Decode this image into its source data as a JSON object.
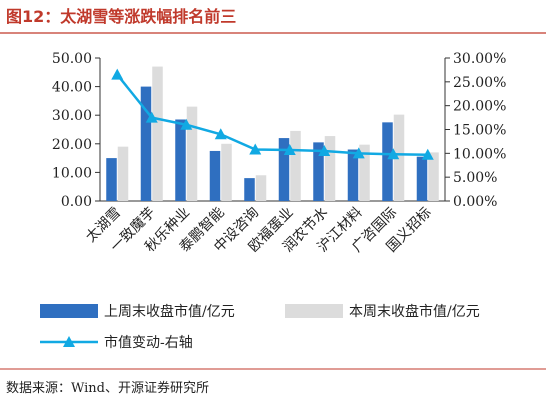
{
  "header": {
    "title": "图12：太湖雪等涨跌幅排名前三"
  },
  "footer": {
    "source": "数据来源：Wind、开源证券研究所"
  },
  "colors": {
    "title": "#c0392b",
    "current_bar": "#2f6fc0",
    "last_bar": "#dcdcdc",
    "line": "#11a9e3",
    "rule": "#c0392b"
  },
  "chart_data": {
    "type": "bar",
    "categories": [
      "太湖雪",
      "一致魔芋",
      "秋乐种业",
      "泰鹏智能",
      "中设咨询",
      "欧福蛋业",
      "润农节水",
      "沪江材料",
      "广咨国际",
      "国义招标"
    ],
    "series": [
      {
        "name": "上周末收盘市值/亿元",
        "axis": "left",
        "values": [
          15.0,
          40.0,
          28.5,
          17.5,
          8.0,
          22.0,
          20.5,
          18.0,
          27.5,
          15.5
        ]
      },
      {
        "name": "本周末收盘市值/亿元",
        "axis": "left",
        "values": [
          19.0,
          47.0,
          33.0,
          20.0,
          9.0,
          24.5,
          22.7,
          19.7,
          30.2,
          17.0
        ]
      },
      {
        "name": "市值变动-右轴",
        "type": "line",
        "axis": "right",
        "values": [
          26.5,
          17.5,
          16.0,
          14.0,
          10.8,
          10.7,
          10.5,
          10.0,
          9.8,
          9.7
        ]
      }
    ],
    "y_left": {
      "lim": [
        0,
        50
      ],
      "ticks": [
        "0.00",
        "10.00",
        "20.00",
        "30.00",
        "40.00",
        "50.00"
      ]
    },
    "y_right": {
      "lim": [
        0,
        30
      ],
      "ticks": [
        "0.00%",
        "5.00%",
        "10.00%",
        "15.00%",
        "20.00%",
        "25.00%",
        "30.00%"
      ]
    },
    "legend": {
      "position": "bottom",
      "items": [
        "上周末收盘市值/亿元",
        "本周末收盘市值/亿元",
        "市值变动-右轴"
      ]
    },
    "grid": false
  }
}
